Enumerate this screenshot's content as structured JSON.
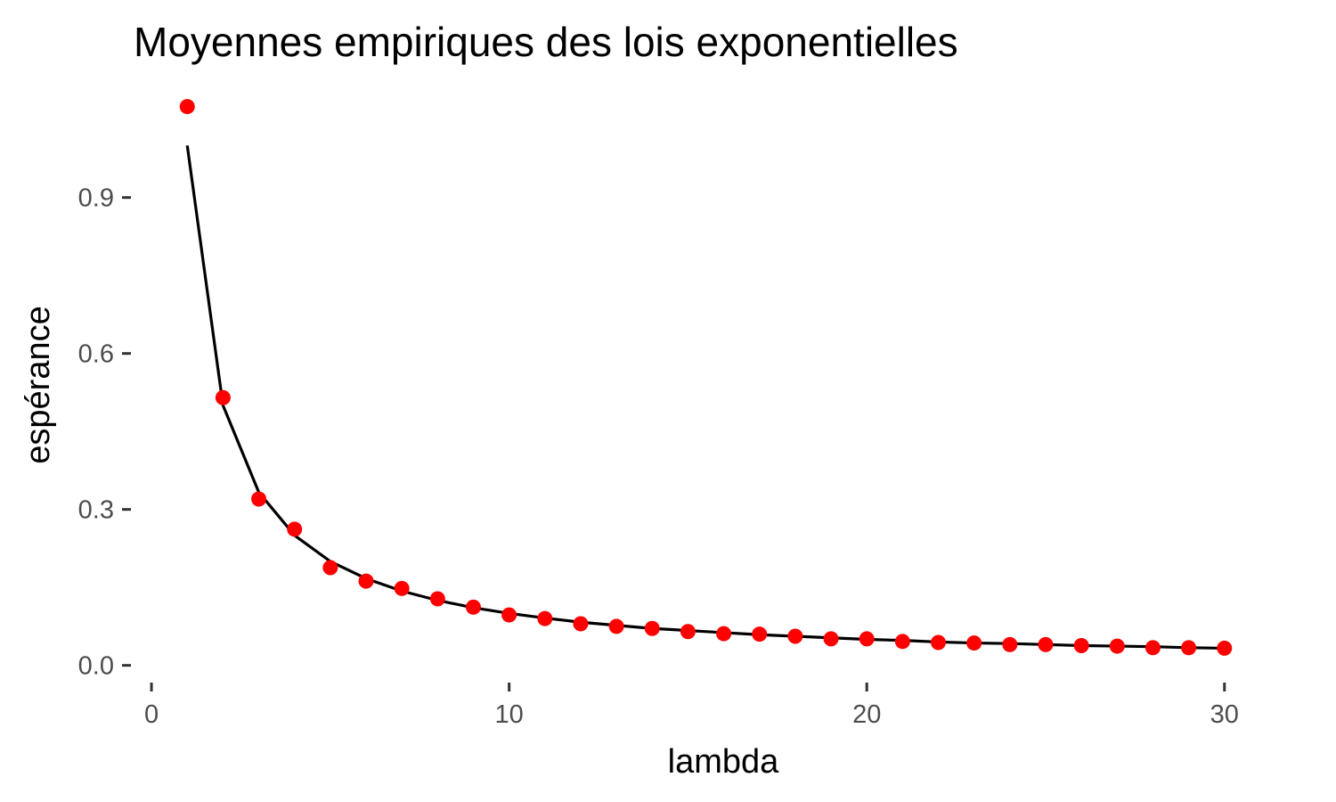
{
  "chart_data": {
    "type": "scatter",
    "title": "Moyennes empiriques des lois exponentielles",
    "xlabel": "lambda",
    "ylabel": "espérance",
    "xlim": [
      -0.5,
      31.5
    ],
    "ylim": [
      -0.04,
      1.1
    ],
    "x_ticks": [
      0,
      10,
      20,
      30
    ],
    "x_tick_labels": [
      "0",
      "10",
      "20",
      "30"
    ],
    "y_ticks": [
      0.0,
      0.3,
      0.6,
      0.9
    ],
    "y_tick_labels": [
      "0.0",
      "0.3",
      "0.6",
      "0.9"
    ],
    "grid": false,
    "series": [
      {
        "kind": "line",
        "color": "#000000",
        "x": [
          1,
          2,
          3,
          4,
          5,
          6,
          7,
          8,
          9,
          10,
          11,
          12,
          13,
          14,
          15,
          16,
          17,
          18,
          19,
          20,
          21,
          22,
          23,
          24,
          25,
          26,
          27,
          28,
          29,
          30
        ],
        "y": [
          1.0,
          0.5,
          0.333,
          0.25,
          0.2,
          0.167,
          0.143,
          0.125,
          0.111,
          0.1,
          0.091,
          0.083,
          0.077,
          0.071,
          0.067,
          0.063,
          0.059,
          0.056,
          0.053,
          0.05,
          0.048,
          0.045,
          0.043,
          0.042,
          0.04,
          0.038,
          0.037,
          0.036,
          0.034,
          0.033
        ]
      },
      {
        "kind": "points",
        "color": "#ff0000",
        "x": [
          1,
          2,
          3,
          4,
          5,
          6,
          7,
          8,
          9,
          10,
          11,
          12,
          13,
          14,
          15,
          16,
          17,
          18,
          19,
          20,
          21,
          22,
          23,
          24,
          25,
          26,
          27,
          28,
          29,
          30
        ],
        "y": [
          1.075,
          0.515,
          0.32,
          0.262,
          0.188,
          0.162,
          0.148,
          0.128,
          0.112,
          0.097,
          0.09,
          0.08,
          0.075,
          0.071,
          0.065,
          0.061,
          0.06,
          0.056,
          0.051,
          0.051,
          0.046,
          0.044,
          0.043,
          0.04,
          0.04,
          0.038,
          0.037,
          0.034,
          0.034,
          0.033
        ]
      }
    ]
  }
}
